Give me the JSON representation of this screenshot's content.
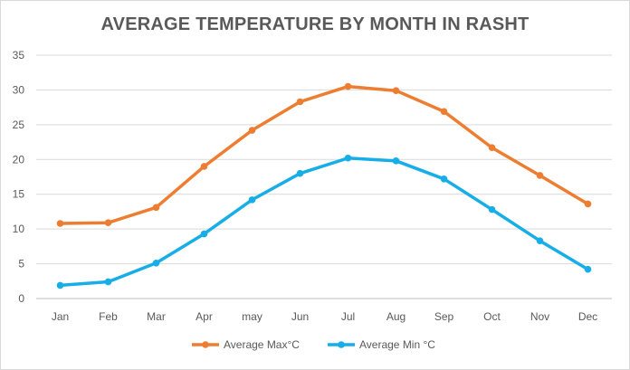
{
  "chart_data": {
    "type": "line",
    "title": "AVERAGE TEMPERATURE BY MONTH IN RASHT",
    "xlabel": "",
    "ylabel": "",
    "categories": [
      "Jan",
      "Feb",
      "Mar",
      "Apr",
      "may",
      "Jun",
      "Jul",
      "Aug",
      "Sep",
      "Oct",
      "Nov",
      "Dec"
    ],
    "ylim": [
      0,
      35
    ],
    "yticks": [
      0,
      5,
      10,
      15,
      20,
      25,
      30,
      35
    ],
    "grid": true,
    "legend_position": "bottom",
    "series": [
      {
        "name": "Average Max°C",
        "color": "#ed7d31",
        "values": [
          10.8,
          10.9,
          13.1,
          19.0,
          24.2,
          28.3,
          30.5,
          29.9,
          26.9,
          21.7,
          17.7,
          13.6
        ]
      },
      {
        "name": "Average Min °C",
        "color": "#17aee8",
        "values": [
          1.9,
          2.4,
          5.1,
          9.3,
          14.2,
          18.0,
          20.2,
          19.8,
          17.2,
          12.8,
          8.3,
          4.2
        ]
      }
    ]
  }
}
